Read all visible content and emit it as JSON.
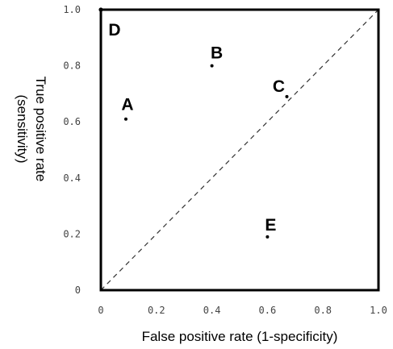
{
  "chart_data": {
    "type": "scatter",
    "title": "",
    "xlabel": "False positive rate (1-specificity)",
    "ylabel_lines": [
      "True positive rate",
      "(sensitivity)"
    ],
    "xlim": [
      0,
      1
    ],
    "ylim": [
      0,
      1
    ],
    "x_ticks": [
      "0",
      "0.2",
      "0.4",
      "0.6",
      "0.8",
      "1.0"
    ],
    "y_ticks": [
      "0",
      "0.2",
      "0.4",
      "0.6",
      "0.8",
      "1.0"
    ],
    "grid": false,
    "diagonal_reference_line": true,
    "points": [
      {
        "label": "A",
        "x": 0.09,
        "y": 0.61
      },
      {
        "label": "B",
        "x": 0.4,
        "y": 0.8
      },
      {
        "label": "C",
        "x": 0.67,
        "y": 0.69
      },
      {
        "label": "D",
        "x": 0.0,
        "y": 1.0
      },
      {
        "label": "E",
        "x": 0.6,
        "y": 0.19
      }
    ],
    "colors": {
      "frame": "#000000",
      "points": "#000000",
      "diagonal": "#333333"
    }
  }
}
